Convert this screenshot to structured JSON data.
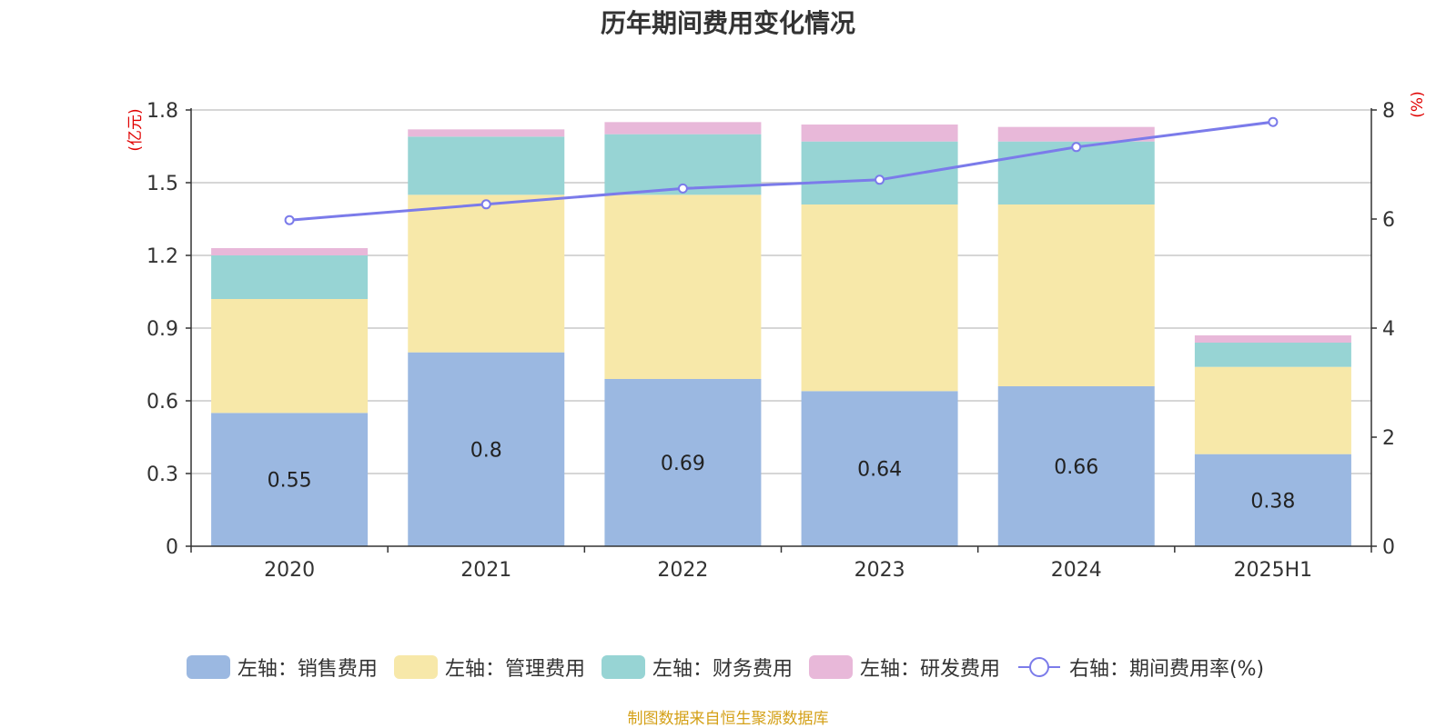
{
  "title": "历年期间费用变化情况",
  "source": "制图数据来自恒生聚源数据库",
  "chart_data": {
    "type": "bar",
    "stacked": true,
    "categories": [
      "2020",
      "2021",
      "2022",
      "2023",
      "2024",
      "2025H1"
    ],
    "left_axis": {
      "label": "(亿元)",
      "ylim": [
        0,
        1.8
      ],
      "ticks": [
        "0",
        "0.3",
        "0.6",
        "0.9",
        "1.2",
        "1.5",
        "1.8"
      ]
    },
    "right_axis": {
      "label": "(%)",
      "ylim": [
        0,
        8
      ],
      "ticks": [
        "0",
        "2",
        "4",
        "6",
        "8"
      ]
    },
    "grid": true,
    "legend_position": "bottom",
    "series": [
      {
        "name": "左轴：销售费用",
        "type": "bar",
        "axis": "left",
        "color": "#9bb8e1",
        "values": [
          0.55,
          0.8,
          0.69,
          0.64,
          0.66,
          0.38
        ],
        "labels": [
          "0.55",
          "0.8",
          "0.69",
          "0.64",
          "0.66",
          "0.38"
        ]
      },
      {
        "name": "左轴：管理费用",
        "type": "bar",
        "axis": "left",
        "color": "#f7e8a9",
        "values": [
          0.47,
          0.65,
          0.76,
          0.77,
          0.75,
          0.36
        ]
      },
      {
        "name": "左轴：财务费用",
        "type": "bar",
        "axis": "left",
        "color": "#97d4d4",
        "values": [
          0.18,
          0.24,
          0.25,
          0.26,
          0.26,
          0.1
        ]
      },
      {
        "name": "左轴：研发费用",
        "type": "bar",
        "axis": "left",
        "color": "#e8b8d9",
        "values": [
          0.03,
          0.03,
          0.05,
          0.07,
          0.06,
          0.03
        ]
      },
      {
        "name": "右轴：期间费用率(%)",
        "type": "line",
        "axis": "right",
        "color": "#7b7bea",
        "values": [
          5.98,
          6.27,
          6.56,
          6.72,
          7.32,
          7.78
        ]
      }
    ]
  }
}
